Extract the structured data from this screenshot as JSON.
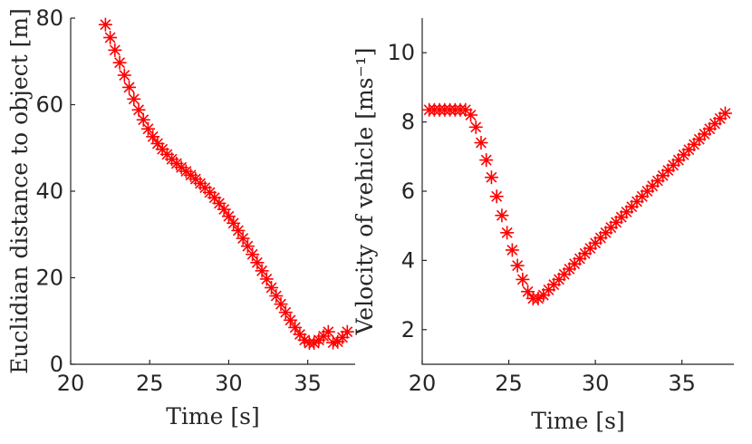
{
  "chart_data": [
    {
      "type": "scatter",
      "xlabel": "Time [s]",
      "ylabel": "Euclidian distance to object [m]",
      "xlim": [
        20,
        38
      ],
      "ylim": [
        0,
        80
      ],
      "xticks": [
        20,
        25,
        30,
        35
      ],
      "yticks": [
        0,
        20,
        40,
        60,
        80
      ],
      "grid": false,
      "marker": "asterisk",
      "color": "#ff0000",
      "x": [
        22.2,
        22.5,
        22.8,
        23.1,
        23.4,
        23.7,
        24.0,
        24.3,
        24.6,
        24.9,
        25.2,
        25.5,
        25.8,
        26.1,
        26.4,
        26.7,
        27.0,
        27.3,
        27.6,
        27.9,
        28.2,
        28.5,
        28.8,
        29.1,
        29.4,
        29.7,
        30.0,
        30.3,
        30.6,
        30.9,
        31.2,
        31.5,
        31.8,
        32.1,
        32.4,
        32.7,
        33.0,
        33.3,
        33.6,
        33.9,
        34.2,
        34.5,
        34.8,
        35.1,
        35.4,
        35.7,
        36.0,
        36.3,
        36.6,
        36.9,
        37.2,
        37.5
      ],
      "y": [
        78.5,
        75.5,
        72.6,
        69.7,
        66.8,
        64.0,
        61.3,
        58.8,
        56.5,
        54.4,
        52.6,
        51.0,
        49.7,
        48.5,
        47.4,
        46.4,
        45.5,
        44.6,
        43.7,
        42.8,
        41.8,
        40.8,
        39.7,
        38.5,
        37.2,
        35.8,
        34.2,
        32.6,
        30.9,
        29.1,
        27.3,
        25.4,
        23.5,
        21.6,
        19.7,
        17.7,
        15.8,
        13.9,
        12.0,
        10.2,
        8.5,
        6.9,
        5.6,
        4.9,
        4.9,
        5.6,
        6.5,
        7.5,
        5.0,
        5.2,
        6.2,
        7.5
      ]
    },
    {
      "type": "scatter",
      "xlabel": "Time [s]",
      "ylabel": "Velocity of vehicle [ms⁻¹]",
      "xlim": [
        20,
        38
      ],
      "ylim": [
        1,
        11
      ],
      "xticks": [
        20,
        25,
        30,
        35
      ],
      "yticks": [
        2,
        4,
        6,
        8,
        10
      ],
      "grid": false,
      "marker": "asterisk",
      "color": "#ff0000",
      "x": [
        20.4,
        20.7,
        21.0,
        21.3,
        21.6,
        21.9,
        22.2,
        22.5,
        22.8,
        23.1,
        23.4,
        23.7,
        24.0,
        24.3,
        24.6,
        24.9,
        25.2,
        25.5,
        25.8,
        26.1,
        26.4,
        26.7,
        27.0,
        27.3,
        27.6,
        27.9,
        28.2,
        28.5,
        28.8,
        29.1,
        29.4,
        29.7,
        30.0,
        30.3,
        30.6,
        30.9,
        31.2,
        31.5,
        31.8,
        32.1,
        32.4,
        32.7,
        33.0,
        33.3,
        33.6,
        33.9,
        34.2,
        34.5,
        34.8,
        35.1,
        35.4,
        35.7,
        36.0,
        36.3,
        36.6,
        36.9,
        37.2,
        37.5
      ],
      "y": [
        8.35,
        8.35,
        8.35,
        8.35,
        8.35,
        8.35,
        8.35,
        8.35,
        8.2,
        7.85,
        7.4,
        6.9,
        6.4,
        5.85,
        5.3,
        4.8,
        4.3,
        3.85,
        3.45,
        3.1,
        2.9,
        2.9,
        3.0,
        3.15,
        3.3,
        3.45,
        3.6,
        3.75,
        3.9,
        4.05,
        4.2,
        4.35,
        4.5,
        4.65,
        4.8,
        4.95,
        5.1,
        5.25,
        5.4,
        5.55,
        5.7,
        5.85,
        6.0,
        6.15,
        6.3,
        6.45,
        6.6,
        6.75,
        6.9,
        7.05,
        7.2,
        7.35,
        7.5,
        7.65,
        7.8,
        7.95,
        8.1,
        8.25
      ]
    }
  ]
}
